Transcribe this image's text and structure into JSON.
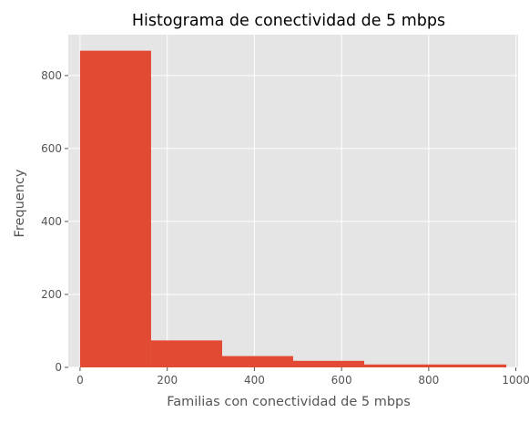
{
  "chart_data": {
    "type": "bar",
    "title": "Histograma de conectividad de 5 mbps",
    "xlabel": "Familias con conectividad de 5 mbps",
    "ylabel": "Frequency",
    "xlim": [
      -27,
      1005
    ],
    "ylim": [
      0,
      912
    ],
    "xticks": [
      0,
      200,
      400,
      600,
      800,
      1000
    ],
    "xtick_labels": [
      "0",
      "200",
      "400",
      "600",
      "800",
      "1000"
    ],
    "yticks": [
      0,
      200,
      400,
      600,
      800
    ],
    "ytick_labels": [
      "0",
      "200",
      "400",
      "600",
      "800"
    ],
    "grid": true,
    "bins": [
      {
        "x0": 0,
        "x1": 163,
        "value": 868
      },
      {
        "x0": 163,
        "x1": 326,
        "value": 74
      },
      {
        "x0": 326,
        "x1": 489,
        "value": 31
      },
      {
        "x0": 489,
        "x1": 652,
        "value": 18
      },
      {
        "x0": 652,
        "x1": 815,
        "value": 8
      },
      {
        "x0": 815,
        "x1": 978,
        "value": 8
      }
    ],
    "colors": {
      "bar": "#E24A33",
      "plot_bg": "#E5E5E5",
      "grid": "#FFFFFF",
      "tick_text": "#555555",
      "label_text": "#555555",
      "title_text": "#000000"
    }
  }
}
